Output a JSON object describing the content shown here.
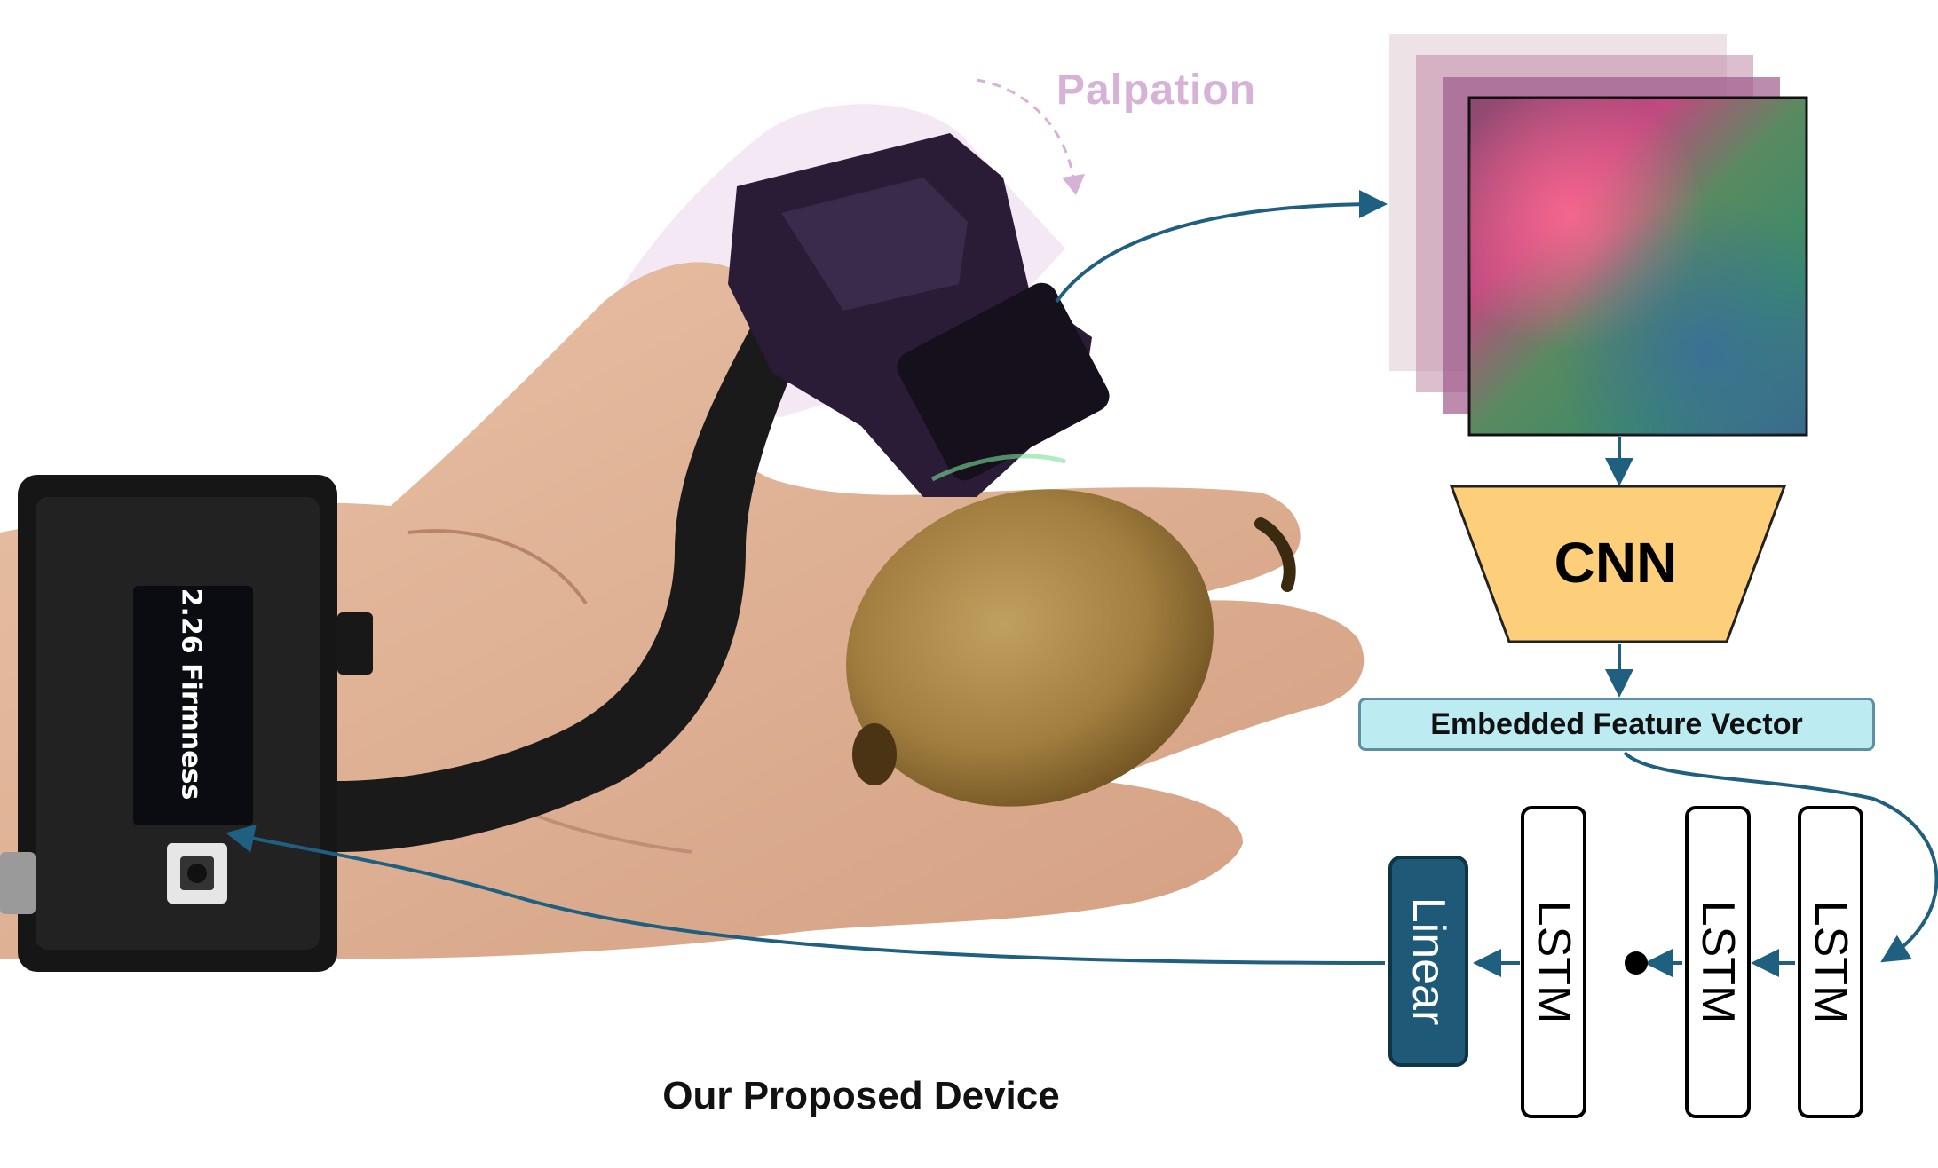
{
  "annotations": {
    "palpation": "Palpation",
    "caption": "Our Proposed Device"
  },
  "device": {
    "screen_readout": "2.26 Firmness"
  },
  "pipeline": {
    "cnn_label": "CNN",
    "feature_vector_label": "Embedded Feature Vector",
    "lstm_blocks": [
      "LSTM",
      "LSTM",
      "LSTM"
    ],
    "linear_label": "Linear"
  },
  "colors": {
    "arrow": "#1f5f7f",
    "cnn_fill": "#fecf7a",
    "feature_fill": "#bdebf2",
    "linear_fill": "#1e5a78",
    "palpation_text": "#d6b2d6",
    "kiwi_skin": "#a27f40"
  }
}
